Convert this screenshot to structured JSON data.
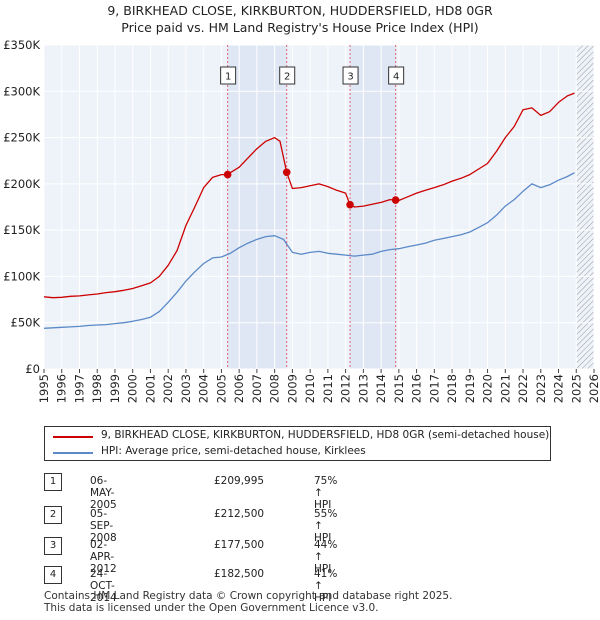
{
  "chart_data": {
    "type": "line",
    "title": "9, BIRKHEAD CLOSE, KIRKBURTON, HUDDERSFIELD, HD8 0GR",
    "subtitle": "Price paid vs. HM Land Registry's House Price Index (HPI)",
    "xlim": [
      1995,
      2026
    ],
    "ylim": [
      0,
      350000
    ],
    "x_ticks": [
      "1995",
      "1996",
      "1997",
      "1998",
      "1999",
      "2000",
      "2001",
      "2002",
      "2003",
      "2004",
      "2005",
      "2006",
      "2007",
      "2008",
      "2009",
      "2010",
      "2011",
      "2012",
      "2013",
      "2014",
      "2015",
      "2016",
      "2017",
      "2018",
      "2019",
      "2020",
      "2021",
      "2022",
      "2023",
      "2024",
      "2025",
      "2026"
    ],
    "y_ticks": [
      {
        "value": 0,
        "label": "£0"
      },
      {
        "value": 50000,
        "label": "£50K"
      },
      {
        "value": 100000,
        "label": "£100K"
      },
      {
        "value": 150000,
        "label": "£150K"
      },
      {
        "value": 200000,
        "label": "£200K"
      },
      {
        "value": 250000,
        "label": "£250K"
      },
      {
        "value": 300000,
        "label": "£300K"
      },
      {
        "value": 350000,
        "label": "£350K"
      }
    ],
    "colors": {
      "property": "#cc0000",
      "hpi": "#5b8ac8",
      "shade": "#e8edf6",
      "vline": "#e06070"
    },
    "forecast_start": 2025.0,
    "series": [
      {
        "name": "9, BIRKHEAD CLOSE, KIRKBURTON, HUDDERSFIELD, HD8 0GR (semi-detached house)",
        "x": [
          1995.0,
          1995.5,
          1996.0,
          1996.5,
          1997.0,
          1997.5,
          1998.0,
          1998.5,
          1999.0,
          1999.5,
          2000.0,
          2000.5,
          2001.0,
          2001.5,
          2002.0,
          2002.5,
          2003.0,
          2003.5,
          2004.0,
          2004.5,
          2005.0,
          2005.35,
          2005.5,
          2006.0,
          2006.5,
          2007.0,
          2007.5,
          2008.0,
          2008.3,
          2008.68,
          2009.0,
          2009.5,
          2010.0,
          2010.5,
          2011.0,
          2011.5,
          2012.0,
          2012.25,
          2012.5,
          2013.0,
          2013.5,
          2014.0,
          2014.5,
          2014.82,
          2015.0,
          2015.5,
          2016.0,
          2016.5,
          2017.0,
          2017.5,
          2018.0,
          2018.5,
          2019.0,
          2019.5,
          2020.0,
          2020.5,
          2021.0,
          2021.5,
          2022.0,
          2022.5,
          2023.0,
          2023.5,
          2024.0,
          2024.5,
          2024.9
        ],
        "values": [
          78000,
          77000,
          77500,
          78500,
          79000,
          80000,
          81000,
          82500,
          83500,
          85000,
          87000,
          90000,
          93000,
          100000,
          112000,
          128000,
          155000,
          175000,
          196000,
          207000,
          209995,
          210000,
          212000,
          218000,
          228000,
          238000,
          246000,
          250000,
          246000,
          212500,
          195000,
          196000,
          198000,
          200000,
          197000,
          193000,
          190000,
          177500,
          175000,
          176000,
          178000,
          180000,
          183000,
          182500,
          182000,
          186000,
          190000,
          193000,
          196000,
          199000,
          203000,
          206000,
          210000,
          216000,
          222000,
          235000,
          250000,
          262000,
          280000,
          282000,
          274000,
          278000,
          288000,
          295000,
          298000
        ]
      },
      {
        "name": "HPI: Average price, semi-detached house, Kirklees",
        "x": [
          1995.0,
          1995.5,
          1996.0,
          1996.5,
          1997.0,
          1997.5,
          1998.0,
          1998.5,
          1999.0,
          1999.5,
          2000.0,
          2000.5,
          2001.0,
          2001.5,
          2002.0,
          2002.5,
          2003.0,
          2003.5,
          2004.0,
          2004.5,
          2005.0,
          2005.5,
          2006.0,
          2006.5,
          2007.0,
          2007.5,
          2008.0,
          2008.5,
          2009.0,
          2009.5,
          2010.0,
          2010.5,
          2011.0,
          2011.5,
          2012.0,
          2012.5,
          2013.0,
          2013.5,
          2014.0,
          2014.5,
          2015.0,
          2015.5,
          2016.0,
          2016.5,
          2017.0,
          2017.5,
          2018.0,
          2018.5,
          2019.0,
          2019.5,
          2020.0,
          2020.5,
          2021.0,
          2021.5,
          2022.0,
          2022.5,
          2023.0,
          2023.5,
          2024.0,
          2024.5,
          2024.9
        ],
        "values": [
          44000,
          44500,
          45000,
          45500,
          46000,
          47000,
          47500,
          48000,
          49000,
          50000,
          51500,
          53500,
          56000,
          62000,
          72000,
          83000,
          95000,
          105000,
          114000,
          120000,
          121000,
          125000,
          131000,
          136000,
          140000,
          143000,
          144000,
          140000,
          126000,
          124000,
          126000,
          127000,
          125000,
          124000,
          123000,
          122000,
          123000,
          124000,
          127000,
          129000,
          130000,
          132000,
          134000,
          136000,
          139000,
          141000,
          143000,
          145000,
          148000,
          153000,
          158000,
          166000,
          176000,
          183000,
          192000,
          200000,
          196000,
          199000,
          204000,
          208000,
          212000
        ]
      }
    ],
    "sales": [
      {
        "label": "1",
        "date": "06-MAY-2005",
        "x": 2005.35,
        "value": 209995,
        "price": "£209,995",
        "hpi": "75% ↑ HPI"
      },
      {
        "label": "2",
        "date": "05-SEP-2008",
        "x": 2008.68,
        "value": 212500,
        "price": "£212,500",
        "hpi": "55% ↑ HPI"
      },
      {
        "label": "3",
        "date": "02-APR-2012",
        "x": 2012.25,
        "value": 177500,
        "price": "£177,500",
        "hpi": "44% ↑ HPI"
      },
      {
        "label": "4",
        "date": "24-OCT-2014",
        "x": 2014.82,
        "value": 182500,
        "price": "£182,500",
        "hpi": "41% ↑ HPI"
      }
    ],
    "shaded_ranges": [
      [
        2005.35,
        2008.68
      ],
      [
        2012.25,
        2014.82
      ]
    ],
    "legend": [
      "9, BIRKHEAD CLOSE, KIRKBURTON, HUDDERSFIELD, HD8 0GR (semi-detached house)",
      "HPI: Average price, semi-detached house, Kirklees"
    ]
  },
  "table": [
    {
      "num": "1",
      "date": "06-MAY-2005",
      "price": "£209,995",
      "hpi": "75% ↑ HPI"
    },
    {
      "num": "2",
      "date": "05-SEP-2008",
      "price": "£212,500",
      "hpi": "55% ↑ HPI"
    },
    {
      "num": "3",
      "date": "02-APR-2012",
      "price": "£177,500",
      "hpi": "44% ↑ HPI"
    },
    {
      "num": "4",
      "date": "24-OCT-2014",
      "price": "£182,500",
      "hpi": "41% ↑ HPI"
    }
  ],
  "footer": {
    "line1": "Contains HM Land Registry data © Crown copyright and database right 2025.",
    "line2": "This data is licensed under the Open Government Licence v3.0."
  }
}
